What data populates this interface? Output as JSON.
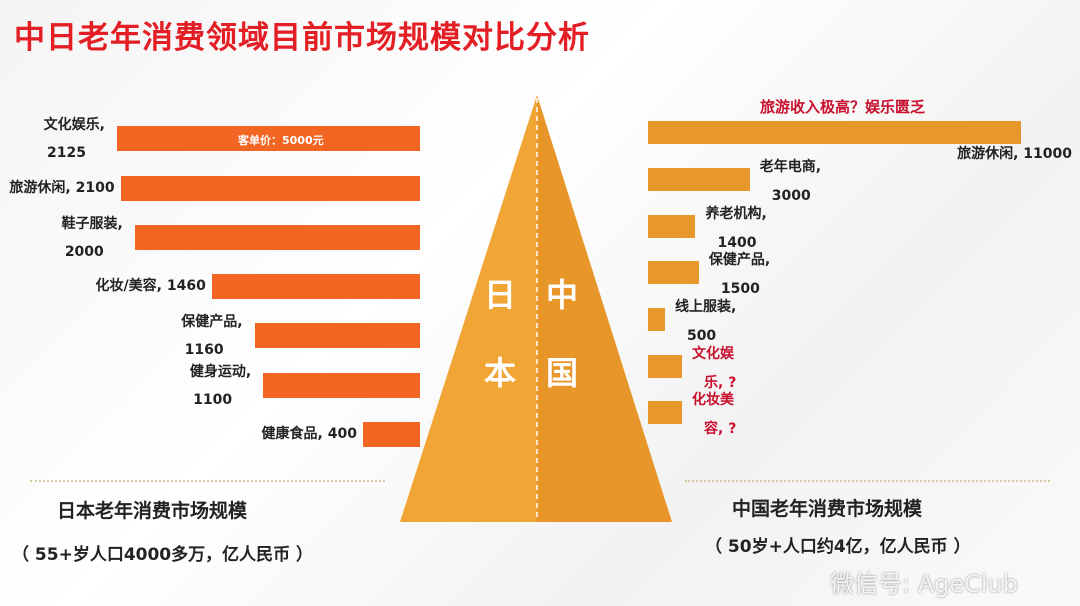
{
  "title": "中日老年消费领域目前市场规模对比分析",
  "chart_data": [
    {
      "type": "bar",
      "orientation": "horizontal",
      "direction": "right-to-left",
      "country": "日本",
      "categories": [
        "文化娱乐",
        "旅游休闲",
        "鞋子服装",
        "化妆/美容",
        "保健产品",
        "健身运动",
        "健康食品"
      ],
      "values": [
        2125,
        2100,
        2000,
        1460,
        1160,
        1100,
        400
      ],
      "labels": [
        "文化娱乐,\n2125",
        "旅游休闲, 2100",
        "鞋子服装,\n2000",
        "化妆/美容, 1460",
        "保健产品,\n1160",
        "健身运动,\n1100",
        "健康食品, 400"
      ],
      "annotation": "客单价：5000元",
      "footer": "日本老年消费市场规模",
      "subfooter": "（ 55+岁人口4000多万，亿人民币 ）",
      "color": "#f26522"
    },
    {
      "type": "bar",
      "orientation": "horizontal",
      "direction": "left-to-right",
      "country": "中国",
      "categories": [
        "旅游休闲",
        "老年电商",
        "养老机构",
        "保健产品",
        "线上服装",
        "文化娱乐",
        "化妆美容"
      ],
      "values": [
        11000,
        3000,
        1400,
        1500,
        500,
        null,
        null
      ],
      "labels": [
        "旅游休闲, 11000",
        "老年电商,\n3000",
        "养老机构,\n1400",
        "保健产品,\n1500",
        "线上服装,\n500",
        "文化娱\n乐, ?",
        "化妆美\n容, ?"
      ],
      "annotation": "旅游收入极高？娱乐匮乏",
      "footer": "中国老年消费市场规模",
      "subfooter": "（ 50岁+人口约4亿，亿人民币 ）",
      "color": "#e8982a"
    }
  ],
  "triangle": {
    "left": "日本",
    "right": "中国",
    "left_color": "#f0a535",
    "right_color": "#e8952a"
  },
  "annotation_color": "#c8102e",
  "watermark": "微信号: AgeClub"
}
